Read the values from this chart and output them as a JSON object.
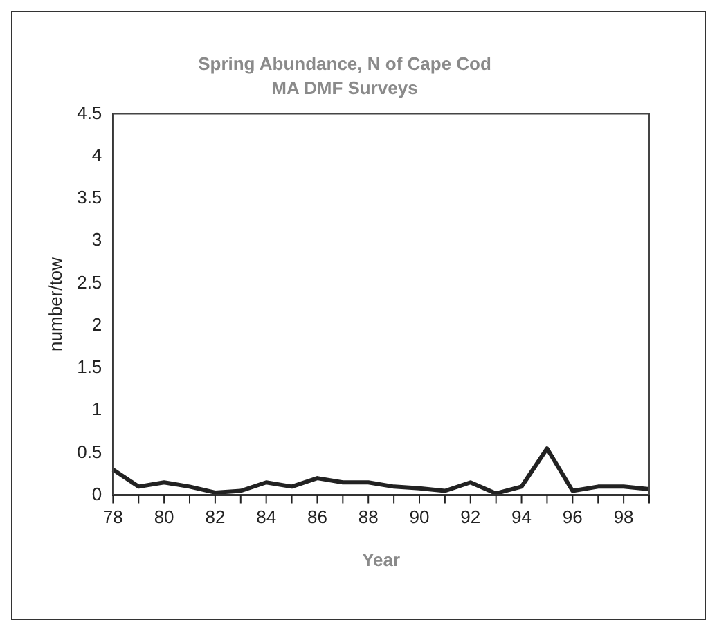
{
  "chart_data": {
    "type": "line",
    "title": "Spring Abundance, N of Cape Cod",
    "subtitle": "MA DMF Surveys",
    "xlabel": "Year",
    "ylabel": "number/tow",
    "categories": [
      "78",
      null,
      "80",
      null,
      "82",
      null,
      "84",
      null,
      "86",
      null,
      "88",
      null,
      "90",
      null,
      "92",
      null,
      "94",
      null,
      "96",
      null,
      "98",
      null
    ],
    "series": [
      {
        "color": "#222222",
        "values": [
          0.3,
          0.1,
          0.15,
          0.1,
          0.03,
          0.05,
          0.15,
          0.1,
          0.2,
          0.15,
          0.15,
          0.1,
          0.08,
          0.05,
          0.15,
          0.02,
          0.1,
          0.55,
          0.05,
          0.1,
          0.1,
          0.07
        ]
      }
    ],
    "ylim": [
      0,
      4.5
    ],
    "yticks": [
      0,
      0.5,
      1,
      1.5,
      2,
      2.5,
      3,
      3.5,
      4,
      4.5
    ],
    "grid": false,
    "legend": false,
    "marker": "none"
  }
}
